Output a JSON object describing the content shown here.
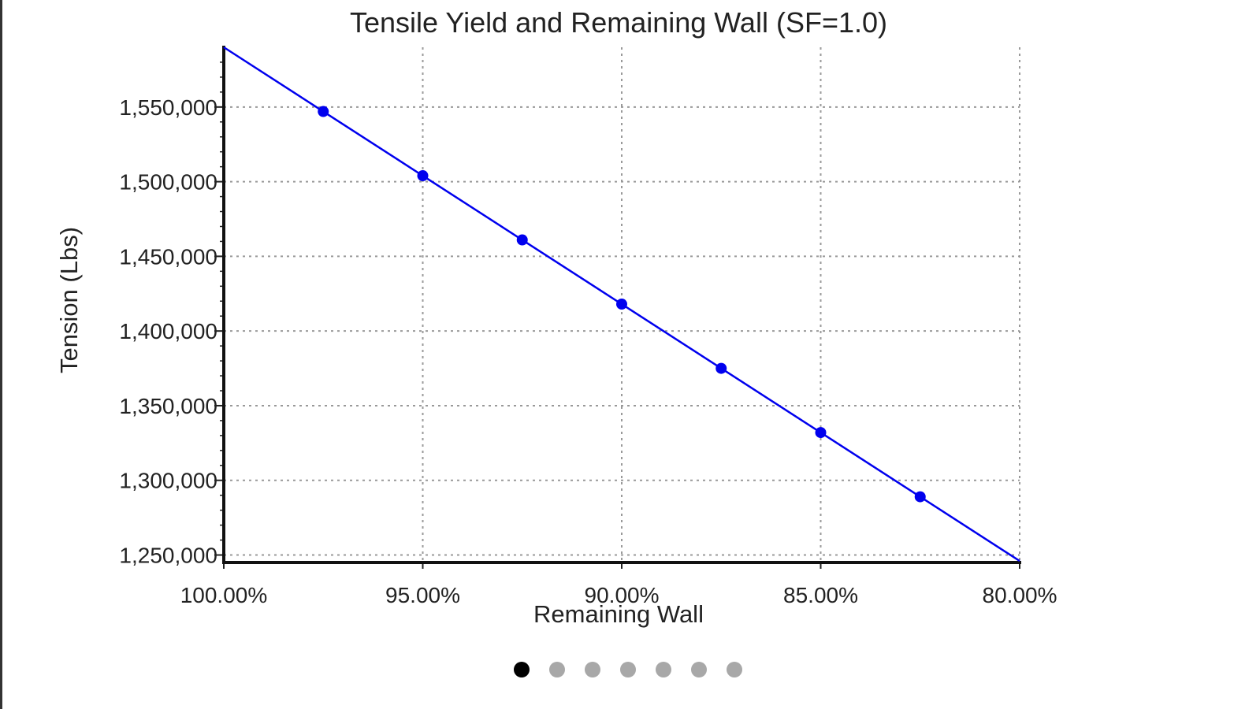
{
  "chart_data": {
    "type": "line",
    "title": "Tensile Yield and Remaining Wall (SF=1.0)",
    "xlabel": "Remaining Wall",
    "ylabel": "Tension (Lbs)",
    "x_reversed": true,
    "xlim": [
      100,
      80
    ],
    "ylim": [
      1245000,
      1590000
    ],
    "x_ticks": [
      100,
      95,
      90,
      85,
      80
    ],
    "x_tick_labels": [
      "100.00%",
      "95.00%",
      "90.00%",
      "85.00%",
      "80.00%"
    ],
    "y_ticks": [
      1250000,
      1300000,
      1350000,
      1400000,
      1450000,
      1500000,
      1550000
    ],
    "y_tick_labels": [
      "1,250,000",
      "1,300,000",
      "1,350,000",
      "1,400,000",
      "1,450,000",
      "1,500,000",
      "1,550,000"
    ],
    "grid": true,
    "series": [
      {
        "color": "#0000ee",
        "x": [
          100,
          97.5,
          95,
          92.5,
          90,
          87.5,
          85,
          82.5,
          80
        ],
        "y": [
          1590000,
          1547000,
          1504000,
          1461000,
          1418000,
          1375000,
          1332000,
          1289000,
          1246000
        ],
        "marker_x": [
          97.5,
          95,
          92.5,
          90,
          87.5,
          85,
          82.5
        ]
      }
    ]
  },
  "pager": {
    "count": 7,
    "active_index": 0
  }
}
